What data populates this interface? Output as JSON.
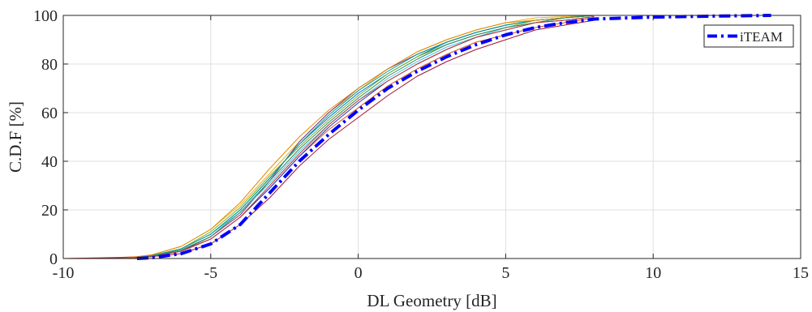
{
  "chart_data": {
    "type": "line",
    "title": "",
    "xlabel": "DL Geometry [dB]",
    "ylabel": "C.D.F [%]",
    "xlim": [
      -10,
      15
    ],
    "ylim": [
      0,
      100
    ],
    "xticks": [
      -10,
      -5,
      0,
      5,
      10,
      15
    ],
    "yticks": [
      0,
      20,
      40,
      60,
      80,
      100
    ],
    "grid": true,
    "legend_position": "top-right",
    "series": [
      {
        "name": "",
        "color": "#0072BD",
        "x": [
          -8.0,
          -7.0,
          -6.0,
          -5.0,
          -4.0,
          -3.0,
          -2.0,
          -1.0,
          0.0,
          1.0,
          2.0,
          3.0,
          4.0,
          5.0,
          6.0,
          7.0,
          8.0
        ],
        "y": [
          0,
          1,
          4,
          10,
          20,
          33,
          47,
          58,
          68,
          76,
          83,
          89,
          93,
          96,
          98,
          99,
          100
        ]
      },
      {
        "name": "",
        "color": "#D95319",
        "x": [
          -10.0,
          -8.0,
          -7.0,
          -6.0,
          -5.0,
          -4.0,
          -3.0,
          -2.0,
          -1.0,
          0.0,
          1.0,
          2.0,
          3.0,
          4.0,
          5.0,
          6.0,
          7.0,
          8.0
        ],
        "y": [
          0,
          0.5,
          1,
          3,
          8,
          17,
          29,
          42,
          53,
          62,
          71,
          78,
          84,
          89,
          92,
          95,
          97,
          99
        ]
      },
      {
        "name": "",
        "color": "#EDB120",
        "x": [
          -8.0,
          -7.0,
          -6.0,
          -5.0,
          -4.0,
          -3.0,
          -2.0,
          -1.0,
          0.0,
          1.0,
          2.0,
          3.0,
          4.0,
          5.0,
          6.0,
          7.0,
          8.0
        ],
        "y": [
          0,
          1.5,
          5,
          12,
          22,
          35,
          48,
          60,
          69,
          78,
          85,
          90,
          94,
          97,
          99,
          99.5,
          100
        ]
      },
      {
        "name": "",
        "color": "#7E2F8E",
        "x": [
          -8.0,
          -7.0,
          -6.0,
          -5.0,
          -4.0,
          -3.0,
          -2.0,
          -1.0,
          0.0,
          1.0,
          2.0,
          3.0,
          4.0,
          5.0,
          6.0,
          7.0,
          8.0
        ],
        "y": [
          0,
          1,
          3,
          9,
          18,
          32,
          48,
          60,
          70,
          78,
          84,
          89,
          93,
          96,
          98,
          99,
          100
        ]
      },
      {
        "name": "",
        "color": "#77AC30",
        "x": [
          -8.0,
          -7.0,
          -6.0,
          -5.0,
          -4.0,
          -3.0,
          -2.0,
          -1.0,
          0.0,
          1.0,
          2.0,
          3.0,
          4.0,
          5.0,
          6.0,
          7.0,
          8.0
        ],
        "y": [
          0,
          1,
          4,
          11,
          21,
          34,
          46,
          57,
          67,
          76,
          83,
          88,
          92,
          95,
          98,
          99,
          100
        ]
      },
      {
        "name": "",
        "color": "#4DBEEE",
        "x": [
          -8.0,
          -7.0,
          -6.0,
          -5.0,
          -4.0,
          -3.0,
          -2.0,
          -1.0,
          0.0,
          1.0,
          2.0,
          3.0,
          4.0,
          5.0,
          6.0,
          7.0,
          8.0
        ],
        "y": [
          0,
          1,
          4,
          10,
          19,
          31,
          44,
          55,
          65,
          74,
          81,
          87,
          91,
          95,
          97,
          99,
          100
        ]
      },
      {
        "name": "",
        "color": "#A2142F",
        "x": [
          -10.0,
          -8.0,
          -7.0,
          -6.0,
          -5.0,
          -4.0,
          -3.0,
          -2.0,
          -1.0,
          0.0,
          1.0,
          2.0,
          3.0,
          4.0,
          5.0,
          6.0,
          7.0,
          8.0
        ],
        "y": [
          0,
          0.3,
          0.8,
          2,
          6,
          14,
          25,
          38,
          49,
          58,
          67,
          75,
          81,
          86,
          90,
          94,
          96,
          98
        ]
      },
      {
        "name": "",
        "color": "#009F8F",
        "x": [
          -8.0,
          -7.0,
          -6.0,
          -5.0,
          -4.0,
          -3.0,
          -2.0,
          -1.0,
          0.0,
          1.0,
          2.0,
          3.0,
          4.0,
          5.0,
          6.0,
          7.0,
          8.0
        ],
        "y": [
          0,
          1.2,
          4,
          10,
          20,
          33,
          47,
          59,
          69,
          77,
          84,
          89,
          93,
          96,
          98,
          99,
          100
        ]
      },
      {
        "name": "",
        "color": "#1F3FBF",
        "x": [
          -8.0,
          -7.0,
          -6.0,
          -5.0,
          -4.0,
          -3.0,
          -2.0,
          -1.0,
          0.0,
          1.0,
          2.0,
          3.0,
          4.0,
          5.0,
          6.0,
          7.0,
          8.0
        ],
        "y": [
          0,
          0.8,
          3,
          8,
          17,
          29,
          42,
          54,
          64,
          73,
          80,
          86,
          91,
          94,
          97,
          98,
          99.5
        ]
      },
      {
        "name": "",
        "color": "#E08A00",
        "x": [
          -8.0,
          -7.0,
          -6.0,
          -5.0,
          -4.0,
          -3.0,
          -2.0,
          -1.0,
          0.0,
          1.0,
          2.0,
          3.0,
          4.0,
          5.0,
          6.0,
          7.0,
          8.0
        ],
        "y": [
          0,
          1.5,
          5,
          12,
          23,
          37,
          50,
          61,
          70,
          78,
          85,
          90,
          94,
          97,
          98,
          99,
          100
        ]
      },
      {
        "name": "",
        "color": "#2E8B57",
        "x": [
          -8.0,
          -7.0,
          -6.0,
          -5.0,
          -4.0,
          -3.0,
          -2.0,
          -1.0,
          0.0,
          1.0,
          2.0,
          3.0,
          4.0,
          5.0,
          6.0,
          7.0,
          8.0
        ],
        "y": [
          0,
          1,
          3.5,
          9,
          19,
          32,
          45,
          56,
          66,
          75,
          82,
          88,
          92,
          95,
          97,
          99,
          100
        ]
      },
      {
        "name": "",
        "color": "#C0392B",
        "x": [
          -8.0,
          -7.0,
          -6.0,
          -5.0,
          -4.0,
          -3.0,
          -2.0,
          -1.0,
          0.0,
          1.0,
          2.0,
          3.0,
          4.0,
          5.0,
          6.0,
          7.0,
          8.0
        ],
        "y": [
          0,
          0.8,
          3,
          8,
          17,
          30,
          43,
          55,
          65,
          73,
          80,
          86,
          91,
          94,
          97,
          98,
          99.5
        ]
      },
      {
        "name": "iTEAM",
        "color": "#0000FF",
        "style": "dash-dot",
        "x": [
          -7.5,
          -7.0,
          -6.0,
          -5.0,
          -4.0,
          -3.0,
          -2.0,
          -1.0,
          0.0,
          1.0,
          2.0,
          3.0,
          4.0,
          5.0,
          6.0,
          7.0,
          8.0,
          10.0,
          12.0,
          14.0
        ],
        "y": [
          0,
          0.3,
          2,
          6,
          14,
          27,
          40,
          51,
          61,
          70,
          77,
          83,
          88,
          92,
          95,
          97,
          98.5,
          99.3,
          99.7,
          100
        ]
      }
    ]
  }
}
